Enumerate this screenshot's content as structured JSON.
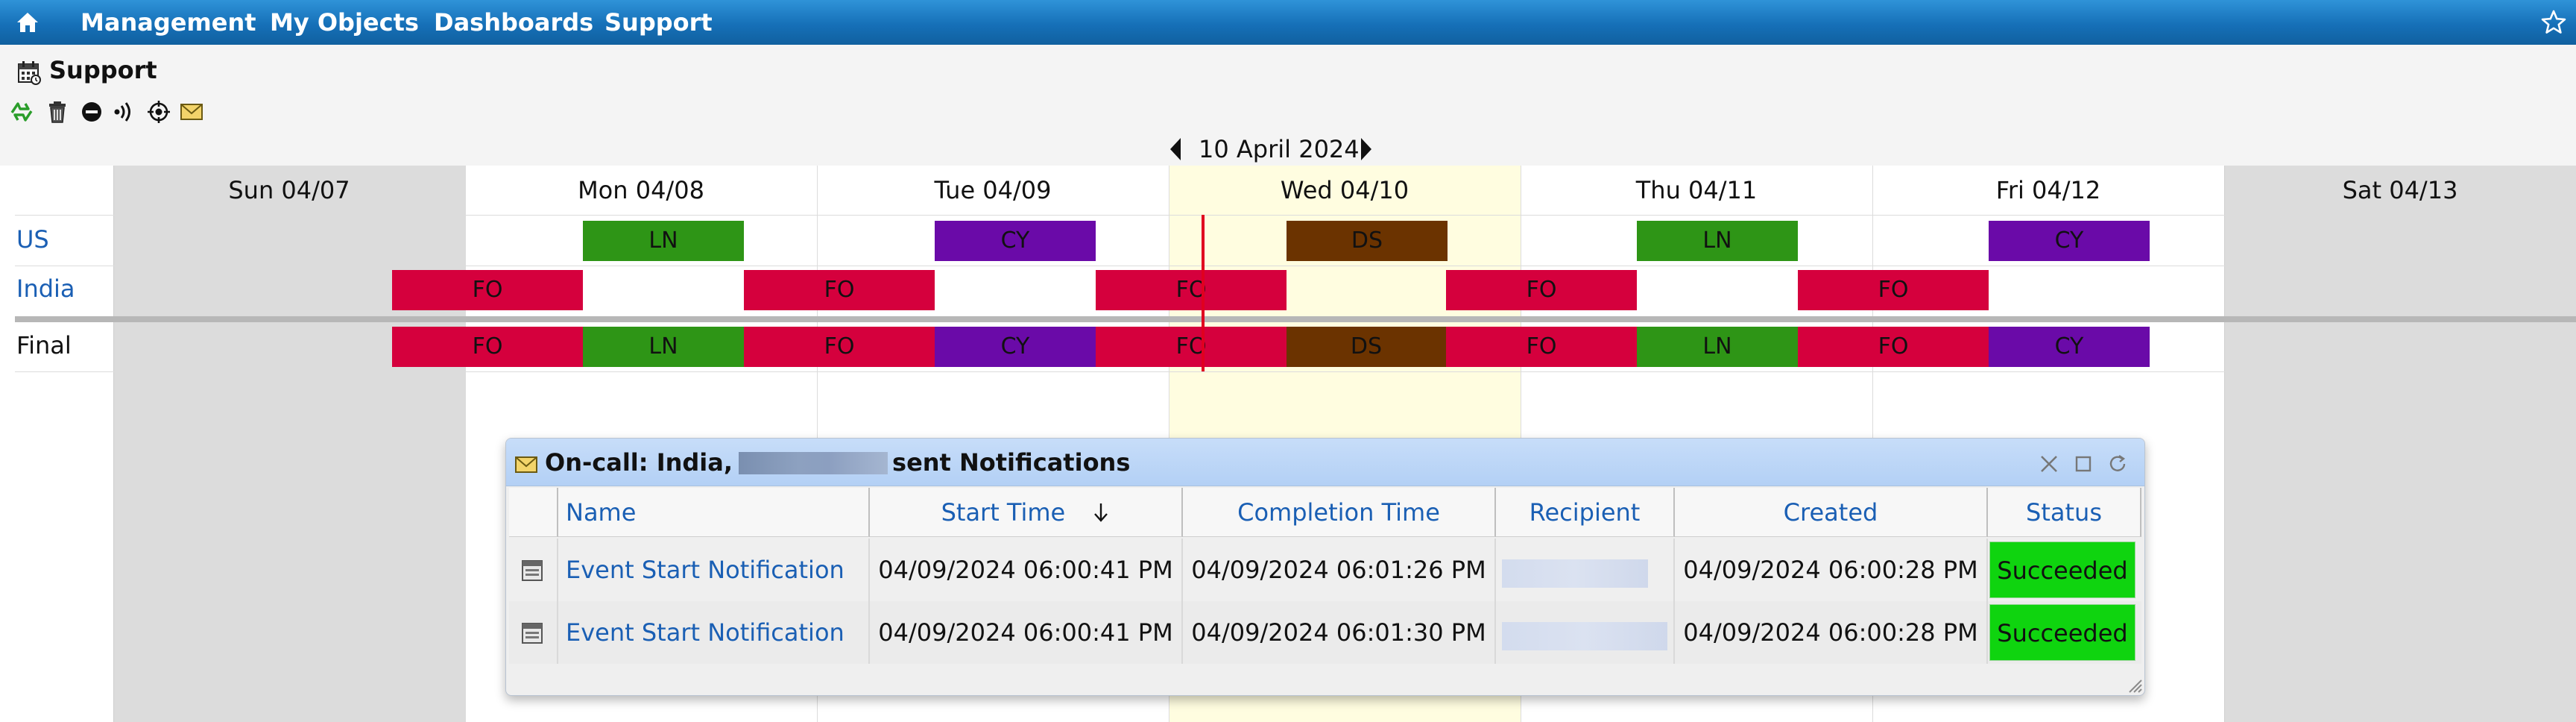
{
  "nav": {
    "items": [
      "Management",
      "My Objects",
      "Dashboards",
      "Support"
    ]
  },
  "page": {
    "title": "Support",
    "current_date": "10 April 2024"
  },
  "toolbar": {
    "icons": [
      "refresh-icon",
      "delete-icon",
      "stop-icon",
      "broadcast-icon",
      "target-icon",
      "mail-icon"
    ]
  },
  "calendar": {
    "days": [
      "Sun 04/07",
      "Mon 04/08",
      "Tue 04/09",
      "Wed 04/10",
      "Thu 04/11",
      "Fri 04/12",
      "Sat 04/13"
    ],
    "rows": {
      "us": "US",
      "india": "India",
      "final": "Final"
    },
    "shifts": {
      "ln": "LN",
      "cy": "CY",
      "ds": "DS",
      "fo": "FO"
    },
    "colors": {
      "LN": "#2e9516",
      "CY": "#6a0aa8",
      "DS": "#6b3300",
      "FO": "#d5003d",
      "today": "#fffde0",
      "now_line": "#e00020"
    }
  },
  "popup": {
    "title_prefix": "On-call: India,",
    "title_suffix": "sent Notifications",
    "columns": [
      "Name",
      "Start Time",
      "Completion Time",
      "Recipient",
      "Created",
      "Status"
    ],
    "sort": {
      "column": "Start Time",
      "direction": "descending"
    },
    "rows": [
      {
        "name": "Event Start Notification",
        "start": "04/09/2024 06:00:41 PM",
        "completion": "04/09/2024 06:01:26 PM",
        "created": "04/09/2024 06:00:28 PM",
        "status": "Succeeded"
      },
      {
        "name": "Event Start Notification",
        "start": "04/09/2024 06:00:41 PM",
        "completion": "04/09/2024 06:01:30 PM",
        "created": "04/09/2024 06:00:28 PM",
        "status": "Succeeded"
      }
    ],
    "status_color": "#0fd40f"
  }
}
